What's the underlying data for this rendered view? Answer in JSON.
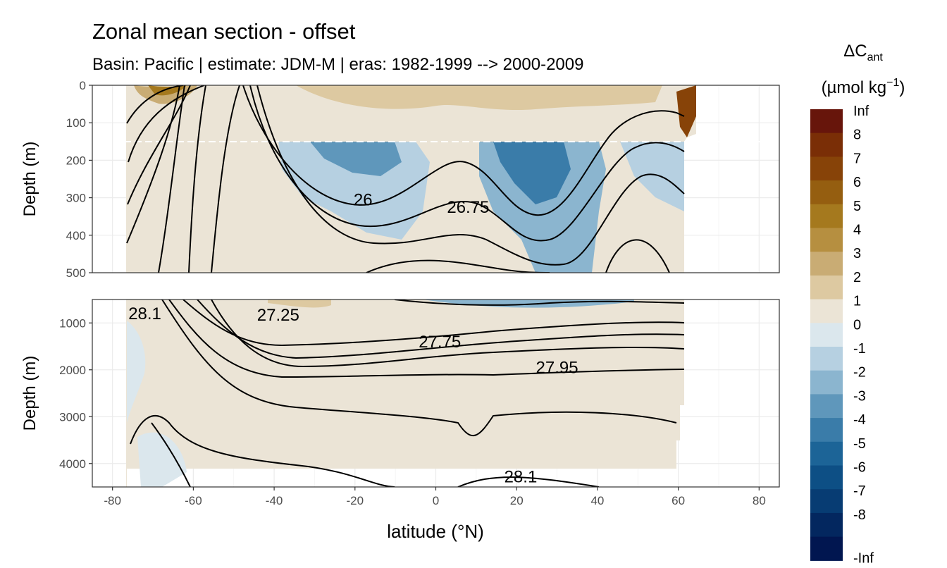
{
  "chart_data": {
    "type": "heatmap",
    "title": "Zonal mean section - offset",
    "subtitle": "Basin: Pacific | estimate: JDM-M | eras: 1982-1999 --> 2000-2009",
    "xlabel": "latitude (°N)",
    "ylabel": "Depth (m)",
    "x_ticks": [
      -80,
      -60,
      -40,
      -20,
      0,
      20,
      40,
      60,
      80
    ],
    "xlim": [
      -85,
      85
    ],
    "panels": [
      {
        "name": "upper",
        "ylim": [
          0,
          500
        ],
        "y_ticks": [
          0,
          100,
          200,
          300,
          400,
          500
        ],
        "reference_depth": 150
      },
      {
        "name": "lower",
        "ylim": [
          500,
          4500
        ],
        "y_ticks": [
          1000,
          2000,
          3000,
          4000
        ]
      }
    ],
    "legend": {
      "title_main": "ΔC",
      "title_sub": "ant",
      "unit_base": "(µmol kg",
      "unit_exp": "−1",
      "unit_close": ")",
      "breaks": [
        "Inf",
        "8",
        "7",
        "6",
        "5",
        "4",
        "3",
        "2",
        "1",
        "0",
        "-1",
        "-2",
        "-3",
        "-4",
        "-5",
        "-6",
        "-7",
        "-8",
        "-Inf"
      ],
      "colors": [
        "#67150b",
        "#7a2e06",
        "#874308",
        "#955e10",
        "#a5791e",
        "#b68f40",
        "#c9ac74",
        "#ddc9a1",
        "#ebe4d6",
        "#dbe7ed",
        "#b6d0e1",
        "#8bb5cf",
        "#5f97bb",
        "#3a7ca9",
        "#1c6497",
        "#0d4f85",
        "#073c73",
        "#03275f",
        "#011650"
      ]
    },
    "contour_labels": [
      {
        "text": "26",
        "lat": -18,
        "depth": 305
      },
      {
        "text": "26.75",
        "lat": 8,
        "depth": 325
      },
      {
        "text": "28.1",
        "lat": -72,
        "depth": 800
      },
      {
        "text": "27.25",
        "lat": -39,
        "depth": 830
      },
      {
        "text": "27.75",
        "lat": 1,
        "depth": 1400
      },
      {
        "text": "27.95",
        "lat": 30,
        "depth": 1950
      },
      {
        "text": "28.1",
        "lat": 21,
        "depth": 4280
      }
    ]
  }
}
